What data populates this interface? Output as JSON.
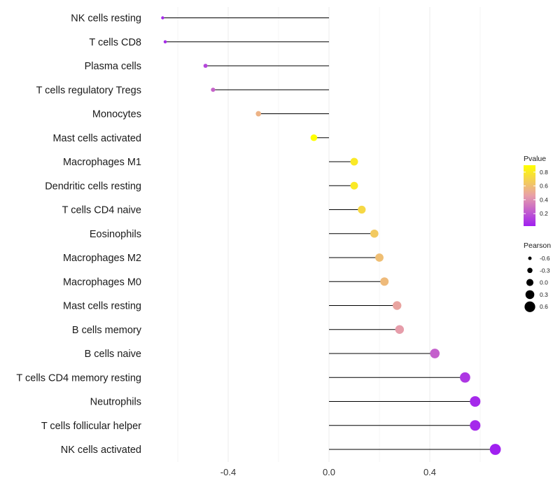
{
  "chart_data": {
    "type": "lollipop",
    "title": "",
    "xlabel": "",
    "ylabel": "",
    "xlim": [
      -0.68,
      0.71
    ],
    "xticks": [
      -0.4,
      0.0,
      0.4
    ],
    "xtick_labels": [
      "-0.4",
      "0.0",
      "0.4"
    ],
    "grid": true,
    "categories": [
      "NK cells resting",
      "T cells CD8",
      "Plasma cells",
      "T cells regulatory  Tregs ",
      "Monocytes",
      "Mast cells activated",
      "Macrophages M1",
      "Dendritic cells resting",
      "T cells CD4 naive",
      "Eosinophils",
      "Macrophages M2",
      "Macrophages M0",
      "Mast cells resting",
      "B cells memory",
      "B cells naive",
      "T cells CD4 memory resting",
      "Neutrophils",
      "T cells follicular helper",
      "NK cells activated"
    ],
    "pearson": [
      -0.66,
      -0.65,
      -0.49,
      -0.46,
      -0.28,
      -0.06,
      0.1,
      0.1,
      0.13,
      0.18,
      0.2,
      0.22,
      0.27,
      0.28,
      0.42,
      0.54,
      0.58,
      0.58,
      0.66
    ],
    "pvalue": [
      0.05,
      0.06,
      0.15,
      0.25,
      0.55,
      0.9,
      0.8,
      0.8,
      0.72,
      0.65,
      0.6,
      0.58,
      0.48,
      0.45,
      0.24,
      0.1,
      0.05,
      0.05,
      0.02
    ],
    "legend_pvalue": {
      "title": "Pvalue",
      "ticks": [
        0.8,
        0.6,
        0.4,
        0.2
      ],
      "tick_labels": [
        "0.8",
        "0.6",
        "0.4",
        "0.2"
      ],
      "range": [
        0.02,
        0.9
      ],
      "low_color": "#a020f0",
      "mid_color": "#e8a0a8",
      "high_color": "#ffff00"
    },
    "legend_pearson": {
      "title": "Pearson",
      "values": [
        -0.6,
        -0.3,
        0.0,
        0.3,
        0.6
      ],
      "labels": [
        "-0.6",
        "-0.3",
        "0.0",
        "0.3",
        "0.6"
      ]
    },
    "legend_placement": "right"
  }
}
